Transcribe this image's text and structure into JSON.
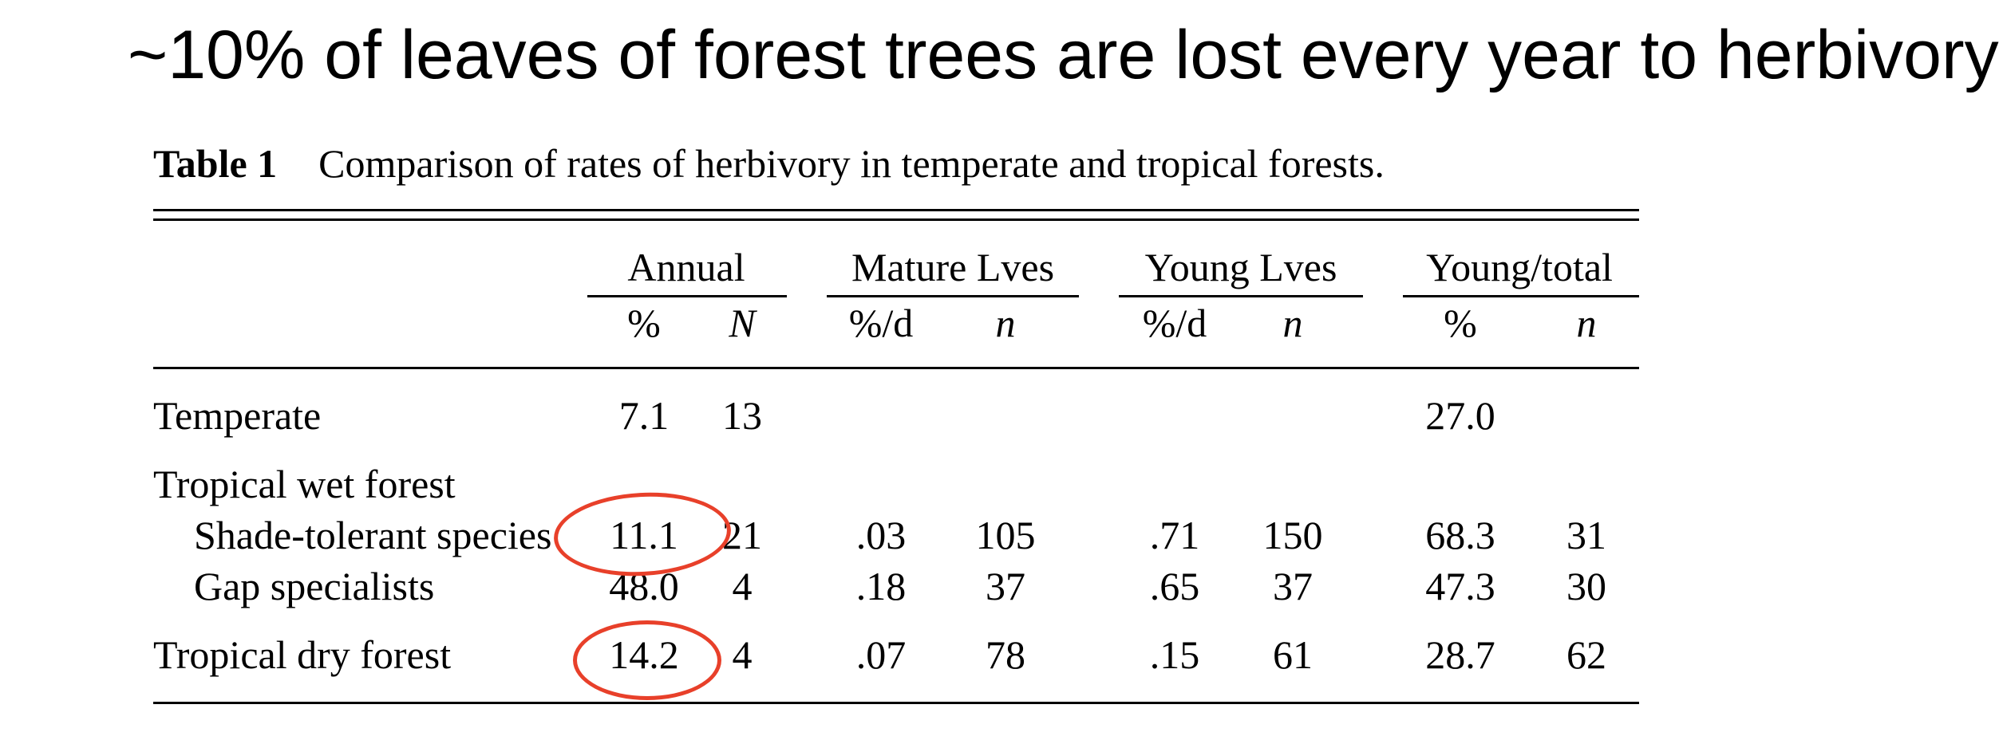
{
  "headline": "~10% of leaves of forest trees are lost every year to herbivory",
  "table": {
    "label": "Table 1",
    "caption": "Comparison of rates of herbivory in temperate and tropical forests.",
    "groups": [
      "Annual",
      "Mature Lves",
      "Young Lves",
      "Young/total"
    ],
    "subheaders": [
      "%",
      "N",
      "%/d",
      "n",
      "%/d",
      "n",
      "%",
      "n"
    ],
    "rows": [
      {
        "label": "Temperate",
        "values": [
          "7.1",
          "13",
          "",
          "",
          "",
          "",
          "27.0",
          ""
        ]
      },
      {
        "label": "Tropical wet forest",
        "values": [
          "",
          "",
          "",
          "",
          "",
          "",
          "",
          ""
        ]
      },
      {
        "label": "Shade-tolerant species",
        "values": [
          "11.1",
          "21",
          ".03",
          "105",
          ".71",
          "150",
          "68.3",
          "31"
        ]
      },
      {
        "label": "Gap specialists",
        "values": [
          "48.0",
          "4",
          ".18",
          "37",
          ".65",
          "37",
          "47.3",
          "30"
        ]
      },
      {
        "label": "Tropical dry forest",
        "values": [
          "14.2",
          "4",
          ".07",
          "78",
          ".15",
          "61",
          "28.7",
          "62"
        ]
      }
    ]
  },
  "annotation_color": "#e8402a"
}
